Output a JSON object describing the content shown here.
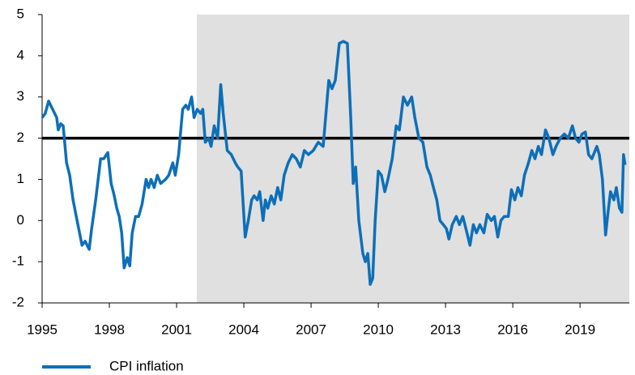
{
  "chart_data": {
    "type": "line",
    "x": [
      1995.0,
      1995.14,
      1995.29,
      1995.47,
      1995.65,
      1995.72,
      1995.83,
      1995.94,
      1996.09,
      1996.23,
      1996.38,
      1996.56,
      1996.67,
      1996.78,
      1996.92,
      1997.1,
      1997.21,
      1997.39,
      1997.61,
      1997.75,
      1997.93,
      1998.08,
      1998.22,
      1998.33,
      1998.44,
      1998.55,
      1998.66,
      1998.8,
      1998.91,
      1999.02,
      1999.17,
      1999.31,
      1999.46,
      1999.64,
      1999.75,
      1999.86,
      2000.0,
      2000.14,
      2000.29,
      2000.51,
      2000.65,
      2000.83,
      2000.94,
      2001.09,
      2001.27,
      2001.41,
      2001.52,
      2001.67,
      2001.78,
      2001.92,
      2002.07,
      2002.17,
      2002.28,
      2002.43,
      2002.54,
      2002.68,
      2002.83,
      2002.97,
      2003.08,
      2003.26,
      2003.44,
      2003.62,
      2003.73,
      2003.88,
      2004.06,
      2004.2,
      2004.35,
      2004.46,
      2004.6,
      2004.71,
      2004.86,
      2004.96,
      2005.07,
      2005.22,
      2005.36,
      2005.51,
      2005.65,
      2005.8,
      2005.98,
      2006.16,
      2006.34,
      2006.52,
      2006.7,
      2006.88,
      2007.1,
      2007.32,
      2007.54,
      2007.68,
      2007.79,
      2007.93,
      2008.08,
      2008.26,
      2008.44,
      2008.62,
      2008.77,
      2008.88,
      2008.99,
      2009.13,
      2009.31,
      2009.42,
      2009.53,
      2009.64,
      2009.75,
      2009.86,
      2010.0,
      2010.14,
      2010.29,
      2010.43,
      2010.62,
      2010.8,
      2010.94,
      2011.12,
      2011.3,
      2011.49,
      2011.63,
      2011.81,
      2011.99,
      2012.17,
      2012.32,
      2012.46,
      2012.61,
      2012.75,
      2012.9,
      2013.04,
      2013.15,
      2013.3,
      2013.48,
      2013.62,
      2013.77,
      2013.91,
      2014.09,
      2014.24,
      2014.38,
      2014.53,
      2014.71,
      2014.86,
      2015.04,
      2015.18,
      2015.33,
      2015.47,
      2015.62,
      2015.8,
      2015.94,
      2016.09,
      2016.23,
      2016.38,
      2016.52,
      2016.7,
      2016.85,
      2016.99,
      2017.14,
      2017.28,
      2017.46,
      2017.61,
      2017.79,
      2017.93,
      2018.12,
      2018.3,
      2018.48,
      2018.66,
      2018.8,
      2018.95,
      2019.09,
      2019.24,
      2019.38,
      2019.53,
      2019.75,
      2019.86,
      2020.0,
      2020.14,
      2020.25,
      2020.36,
      2020.51,
      2020.62,
      2020.76,
      2020.87,
      2020.94,
      2021.01
    ],
    "series": [
      {
        "name": "CPI inflation",
        "color": "#0d6fb8",
        "values": [
          2.5,
          2.6,
          2.9,
          2.7,
          2.5,
          2.2,
          2.35,
          2.3,
          1.4,
          1.1,
          0.5,
          0.0,
          -0.3,
          -0.6,
          -0.5,
          -0.7,
          -0.2,
          0.5,
          1.5,
          1.5,
          1.65,
          0.9,
          0.6,
          0.3,
          0.1,
          -0.3,
          -1.15,
          -0.9,
          -1.1,
          -0.3,
          0.1,
          0.1,
          0.4,
          1.0,
          0.8,
          1.0,
          0.8,
          1.1,
          0.9,
          1.0,
          1.1,
          1.4,
          1.1,
          1.6,
          2.7,
          2.8,
          2.7,
          3.0,
          2.5,
          2.7,
          2.6,
          2.7,
          1.9,
          2.0,
          1.8,
          2.3,
          2.0,
          3.3,
          2.6,
          1.7,
          1.6,
          1.4,
          1.3,
          1.2,
          -0.4,
          0.0,
          0.5,
          0.6,
          0.5,
          0.7,
          0.0,
          0.5,
          0.3,
          0.6,
          0.4,
          0.8,
          0.5,
          1.1,
          1.4,
          1.6,
          1.5,
          1.3,
          1.7,
          1.6,
          1.7,
          1.9,
          1.8,
          2.7,
          3.4,
          3.2,
          3.4,
          4.3,
          4.35,
          4.3,
          2.5,
          0.9,
          1.3,
          0.0,
          -0.8,
          -1.0,
          -0.8,
          -1.55,
          -1.4,
          0.0,
          1.2,
          1.1,
          0.7,
          1.0,
          1.5,
          2.3,
          2.2,
          3.0,
          2.8,
          3.0,
          2.5,
          2.0,
          1.9,
          1.3,
          1.1,
          0.8,
          0.5,
          0.0,
          -0.1,
          -0.2,
          -0.45,
          -0.1,
          0.1,
          -0.1,
          0.1,
          -0.2,
          -0.6,
          -0.1,
          -0.3,
          -0.1,
          -0.3,
          0.15,
          0.0,
          0.1,
          -0.4,
          0.0,
          0.1,
          0.1,
          0.75,
          0.5,
          0.8,
          0.6,
          1.1,
          1.4,
          1.7,
          1.5,
          1.8,
          1.6,
          2.2,
          2.0,
          1.6,
          1.8,
          2.0,
          2.1,
          2.0,
          2.3,
          2.0,
          1.9,
          2.1,
          2.15,
          1.6,
          1.5,
          1.8,
          1.6,
          1.0,
          -0.35,
          0.2,
          0.7,
          0.5,
          0.8,
          0.3,
          0.2,
          1.6,
          1.35
        ]
      }
    ],
    "xlim": [
      1995,
      2021.2
    ],
    "xticks": [
      1995,
      1998,
      2001,
      2004,
      2007,
      2010,
      2013,
      2016,
      2019
    ],
    "ylim": [
      -2,
      5
    ],
    "yticks": [
      -2,
      -1,
      0,
      1,
      2,
      3,
      4,
      5
    ],
    "reference_line": 2,
    "reference_color": "#000000",
    "shade_from": 2001.9,
    "shade_color": "#e0e0e0",
    "grid": false,
    "legend": "bottom-left"
  }
}
